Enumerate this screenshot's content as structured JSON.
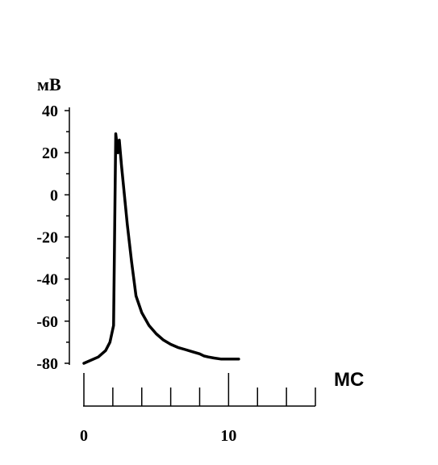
{
  "chart_data": {
    "type": "line",
    "ylabel": "мВ",
    "xlabel": "МС",
    "ylim": [
      -80,
      40
    ],
    "y_ticks": [
      40,
      20,
      0,
      -20,
      -40,
      -60,
      -80
    ],
    "y_tick_labels": [
      "40",
      "20",
      "0",
      "-20",
      "-40",
      "-60",
      "-80"
    ],
    "xlim": [
      0,
      16
    ],
    "x_ticks": [
      0,
      2,
      4,
      6,
      8,
      10,
      12,
      14,
      16
    ],
    "x_tick_labels": [
      "0",
      "10"
    ],
    "x_tick_label_values": [
      0,
      10
    ],
    "series": [
      {
        "x": [
          0,
          1,
          1.5,
          1.8,
          2.05,
          2.2,
          2.35,
          2.45,
          2.6,
          2.8,
          3.0,
          3.3,
          3.6,
          3.8,
          4.0,
          4.5,
          5.0,
          5.5,
          6.0,
          6.5,
          7.0,
          7.5,
          8.0,
          8.3,
          8.6,
          9.0,
          9.5,
          10.0,
          10.4,
          10.7
        ],
        "y": [
          -80,
          -77,
          -74,
          -70,
          -62,
          29,
          20,
          26,
          14,
          0,
          -14,
          -32,
          -48,
          -52,
          -56,
          -62,
          -66,
          -69,
          -71,
          -72.5,
          -73.5,
          -74.5,
          -75.5,
          -76.5,
          -77,
          -77.5,
          -78,
          -78,
          -78,
          -78
        ]
      }
    ]
  }
}
